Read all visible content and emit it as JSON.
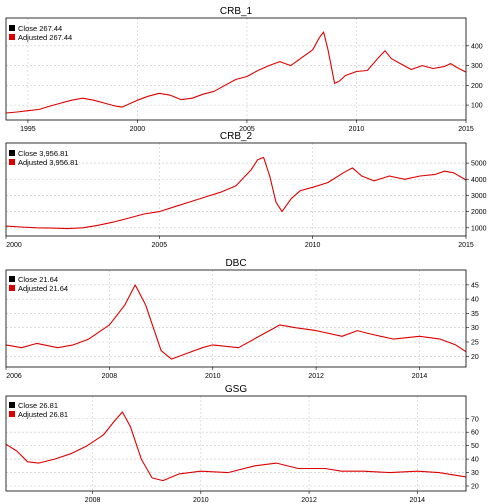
{
  "colors": {
    "series_line": "#dd0000",
    "close_swatch": "#000000",
    "adjusted_swatch": "#dd0000",
    "grid": "#c8c8c8",
    "frame": "#000000"
  },
  "chart_data": [
    {
      "type": "line",
      "title": "CRB_1",
      "legend": [
        "Close 267.44",
        "Adjusted 267.44"
      ],
      "legend_position": "top-left",
      "grid": true,
      "xlim": [
        1994.0,
        2015.0
      ],
      "x_ticks": [
        1995,
        2000,
        2005,
        2010,
        2015
      ],
      "x_tick_labels": [
        "1995",
        "2000",
        "2005",
        "2010",
        "2015"
      ],
      "ylim": [
        50,
        480
      ],
      "y_ticks": [
        100,
        200,
        300,
        400
      ],
      "y_tick_labels": [
        "100",
        "200",
        "300",
        "400"
      ],
      "series": [
        {
          "values": [
            [
              1994.0,
              60
            ],
            [
              1994.5,
              65
            ],
            [
              1995.0,
              72
            ],
            [
              1995.5,
              78
            ],
            [
              1996.0,
              95
            ],
            [
              1996.5,
              110
            ],
            [
              1997.0,
              125
            ],
            [
              1997.5,
              135
            ],
            [
              1998.0,
              125
            ],
            [
              1998.5,
              110
            ],
            [
              1999.0,
              95
            ],
            [
              1999.3,
              90
            ],
            [
              1999.6,
              105
            ],
            [
              2000.0,
              125
            ],
            [
              2000.5,
              145
            ],
            [
              2001.0,
              160
            ],
            [
              2001.5,
              150
            ],
            [
              2002.0,
              128
            ],
            [
              2002.5,
              135
            ],
            [
              2003.0,
              155
            ],
            [
              2003.5,
              170
            ],
            [
              2004.0,
              200
            ],
            [
              2004.5,
              230
            ],
            [
              2005.0,
              245
            ],
            [
              2005.5,
              275
            ],
            [
              2006.0,
              300
            ],
            [
              2006.5,
              320
            ],
            [
              2007.0,
              300
            ],
            [
              2007.5,
              340
            ],
            [
              2008.0,
              380
            ],
            [
              2008.3,
              440
            ],
            [
              2008.5,
              470
            ],
            [
              2008.7,
              380
            ],
            [
              2009.0,
              210
            ],
            [
              2009.2,
              220
            ],
            [
              2009.5,
              250
            ],
            [
              2010.0,
              270
            ],
            [
              2010.5,
              275
            ],
            [
              2011.0,
              340
            ],
            [
              2011.3,
              375
            ],
            [
              2011.6,
              335
            ],
            [
              2012.0,
              310
            ],
            [
              2012.5,
              280
            ],
            [
              2013.0,
              300
            ],
            [
              2013.5,
              285
            ],
            [
              2014.0,
              295
            ],
            [
              2014.3,
              310
            ],
            [
              2014.6,
              290
            ],
            [
              2015.0,
              267
            ]
          ]
        }
      ]
    },
    {
      "type": "line",
      "title": "CRB_2",
      "legend": [
        "Close 3,956.81",
        "Adjusted 3,956.81"
      ],
      "legend_position": "top-left",
      "grid": true,
      "xlim": [
        2000.0,
        2015.0
      ],
      "x_ticks": [
        2000,
        2005,
        2010,
        2015
      ],
      "x_tick_labels": [
        "2000",
        "2005",
        "2010",
        "2015"
      ],
      "ylim": [
        800,
        5500
      ],
      "y_ticks": [
        1000,
        2000,
        3000,
        4000,
        5000
      ],
      "y_tick_labels": [
        "1000",
        "2000",
        "3000",
        "4000",
        "5000"
      ],
      "series": [
        {
          "values": [
            [
              2000.0,
              1100
            ],
            [
              2000.5,
              1050
            ],
            [
              2001.0,
              1000
            ],
            [
              2001.5,
              980
            ],
            [
              2002.0,
              950
            ],
            [
              2002.5,
              1000
            ],
            [
              2003.0,
              1150
            ],
            [
              2003.5,
              1350
            ],
            [
              2004.0,
              1600
            ],
            [
              2004.5,
              1850
            ],
            [
              2005.0,
              2000
            ],
            [
              2005.5,
              2300
            ],
            [
              2006.0,
              2600
            ],
            [
              2006.5,
              2900
            ],
            [
              2007.0,
              3200
            ],
            [
              2007.5,
              3600
            ],
            [
              2008.0,
              4600
            ],
            [
              2008.2,
              5200
            ],
            [
              2008.4,
              5350
            ],
            [
              2008.6,
              4200
            ],
            [
              2008.8,
              2600
            ],
            [
              2009.0,
              2000
            ],
            [
              2009.3,
              2800
            ],
            [
              2009.6,
              3300
            ],
            [
              2010.0,
              3500
            ],
            [
              2010.5,
              3800
            ],
            [
              2011.0,
              4400
            ],
            [
              2011.3,
              4700
            ],
            [
              2011.6,
              4200
            ],
            [
              2012.0,
              3900
            ],
            [
              2012.5,
              4200
            ],
            [
              2013.0,
              4000
            ],
            [
              2013.5,
              4200
            ],
            [
              2014.0,
              4300
            ],
            [
              2014.3,
              4500
            ],
            [
              2014.6,
              4400
            ],
            [
              2015.0,
              3957
            ]
          ]
        }
      ]
    },
    {
      "type": "line",
      "title": "DBC",
      "legend": [
        "Close 21.64",
        "Adjusted 21.64"
      ],
      "legend_position": "top-left",
      "grid": true,
      "xlim": [
        2006.0,
        2014.9
      ],
      "x_ticks": [
        2006,
        2008,
        2010,
        2012,
        2014
      ],
      "x_tick_labels": [
        "2006",
        "2008",
        "2010",
        "2012",
        "2014"
      ],
      "ylim": [
        18,
        46
      ],
      "y_ticks": [
        20,
        25,
        30,
        35,
        40,
        45
      ],
      "y_tick_labels": [
        "20",
        "25",
        "30",
        "35",
        "40",
        "45"
      ],
      "series": [
        {
          "values": [
            [
              2006.0,
              24
            ],
            [
              2006.3,
              23
            ],
            [
              2006.6,
              24.5
            ],
            [
              2007.0,
              23
            ],
            [
              2007.3,
              24
            ],
            [
              2007.6,
              26
            ],
            [
              2008.0,
              31
            ],
            [
              2008.3,
              38
            ],
            [
              2008.5,
              45
            ],
            [
              2008.7,
              38
            ],
            [
              2009.0,
              22
            ],
            [
              2009.2,
              19
            ],
            [
              2009.5,
              21
            ],
            [
              2009.8,
              23
            ],
            [
              2010.0,
              24
            ],
            [
              2010.5,
              23
            ],
            [
              2011.0,
              28
            ],
            [
              2011.3,
              31
            ],
            [
              2011.6,
              30
            ],
            [
              2012.0,
              29
            ],
            [
              2012.5,
              27
            ],
            [
              2012.8,
              29
            ],
            [
              2013.0,
              28
            ],
            [
              2013.5,
              26
            ],
            [
              2014.0,
              27
            ],
            [
              2014.4,
              26
            ],
            [
              2014.7,
              24
            ],
            [
              2014.9,
              21.6
            ]
          ]
        }
      ]
    },
    {
      "type": "line",
      "title": "GSG",
      "legend": [
        "Close 26.81",
        "Adjusted 26.81"
      ],
      "legend_position": "top-left",
      "grid": true,
      "xlim": [
        2006.4,
        2014.9
      ],
      "x_ticks": [
        2008,
        2010,
        2012,
        2014
      ],
      "x_tick_labels": [
        "2008",
        "2010",
        "2012",
        "2014"
      ],
      "ylim": [
        20,
        78
      ],
      "y_ticks": [
        20,
        30,
        40,
        50,
        60,
        70
      ],
      "y_tick_labels": [
        "20",
        "30",
        "40",
        "50",
        "60",
        "70"
      ],
      "series": [
        {
          "values": [
            [
              2006.4,
              51
            ],
            [
              2006.6,
              46
            ],
            [
              2006.8,
              38
            ],
            [
              2007.0,
              37
            ],
            [
              2007.3,
              40
            ],
            [
              2007.6,
              44
            ],
            [
              2007.9,
              50
            ],
            [
              2008.2,
              58
            ],
            [
              2008.4,
              68
            ],
            [
              2008.55,
              75
            ],
            [
              2008.7,
              64
            ],
            [
              2008.9,
              40
            ],
            [
              2009.1,
              26
            ],
            [
              2009.3,
              24
            ],
            [
              2009.6,
              29
            ],
            [
              2010.0,
              31
            ],
            [
              2010.5,
              30
            ],
            [
              2011.0,
              35
            ],
            [
              2011.4,
              37
            ],
            [
              2011.8,
              33
            ],
            [
              2012.3,
              33
            ],
            [
              2012.6,
              31
            ],
            [
              2013.0,
              31
            ],
            [
              2013.5,
              30
            ],
            [
              2014.0,
              31
            ],
            [
              2014.4,
              30
            ],
            [
              2014.7,
              28
            ],
            [
              2014.9,
              26.8
            ]
          ]
        }
      ]
    }
  ]
}
